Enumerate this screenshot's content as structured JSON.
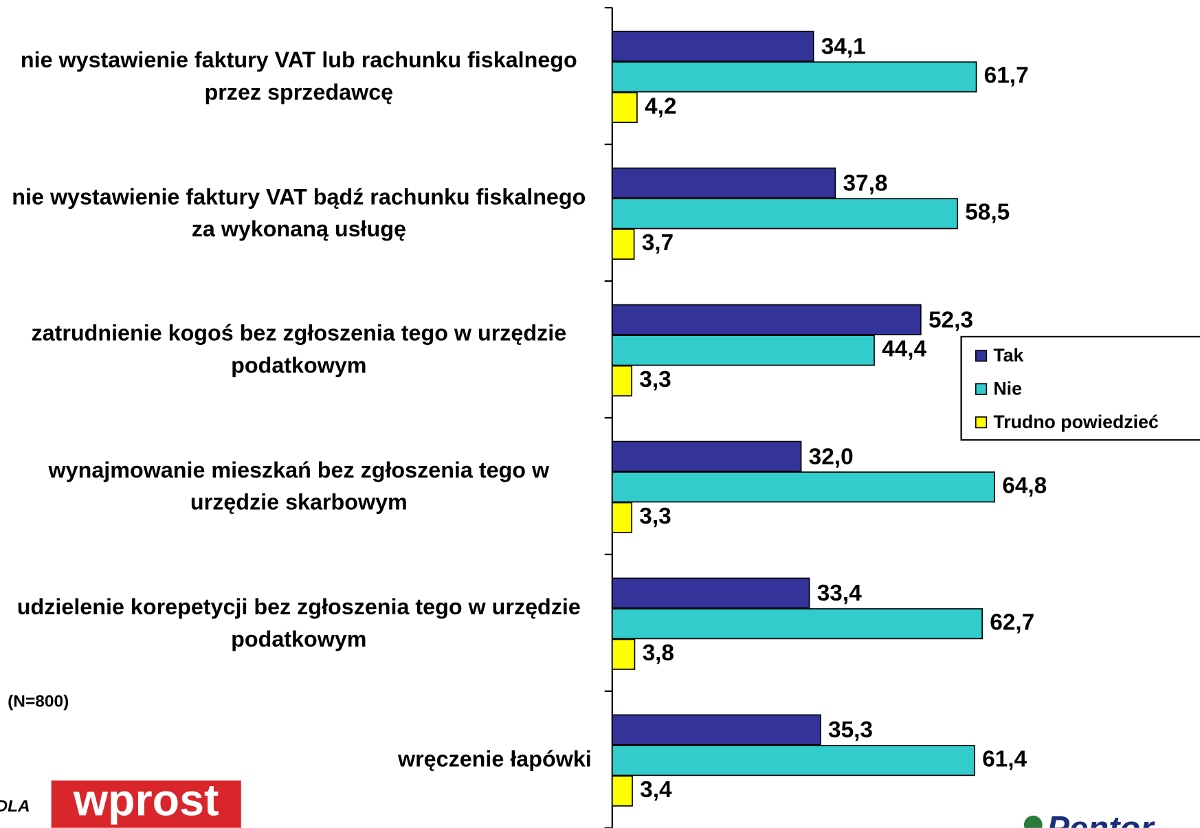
{
  "chart_data": {
    "type": "bar",
    "orientation": "horizontal",
    "categories": [
      "nie wystawienie faktury VAT lub rachunku fiskalnego przez sprzedawcę",
      "nie wystawienie faktury VAT bądź rachunku fiskalnego za wykonaną usługę",
      "zatrudnienie kogoś bez zgłoszenia tego w urzędzie podatkowym",
      "wynajmowanie mieszkań bez zgłoszenia tego w urzędzie skarbowym",
      "udzielenie korepetycji bez zgłoszenia tego w urzędzie podatkowym",
      "wręczenie łapówki"
    ],
    "series": [
      {
        "name": "Tak",
        "color": "#333399",
        "values": [
          34.1,
          37.8,
          52.3,
          32.0,
          33.4,
          35.3
        ],
        "value_labels": [
          "34,1",
          "37,8",
          "52,3",
          "32,0",
          "33,4",
          "35,3"
        ]
      },
      {
        "name": "Nie",
        "color": "#33CCCC",
        "values": [
          61.7,
          58.5,
          44.4,
          64.8,
          62.7,
          61.4
        ],
        "value_labels": [
          "61,7",
          "58,5",
          "44,4",
          "64,8",
          "62,7",
          "61,4"
        ]
      },
      {
        "name": "Trudno powiedzieć",
        "color": "#FFFF00",
        "values": [
          4.2,
          3.7,
          3.3,
          3.3,
          3.8,
          3.4
        ],
        "value_labels": [
          "4,2",
          "3,7",
          "3,3",
          "3,3",
          "3,8",
          "3,4"
        ]
      }
    ],
    "xlim": [
      0,
      100
    ],
    "legend": "right",
    "note": "(N=800)",
    "source_prefix": "DLA",
    "logo_left": "wprost",
    "logo_right": "Pentor"
  }
}
